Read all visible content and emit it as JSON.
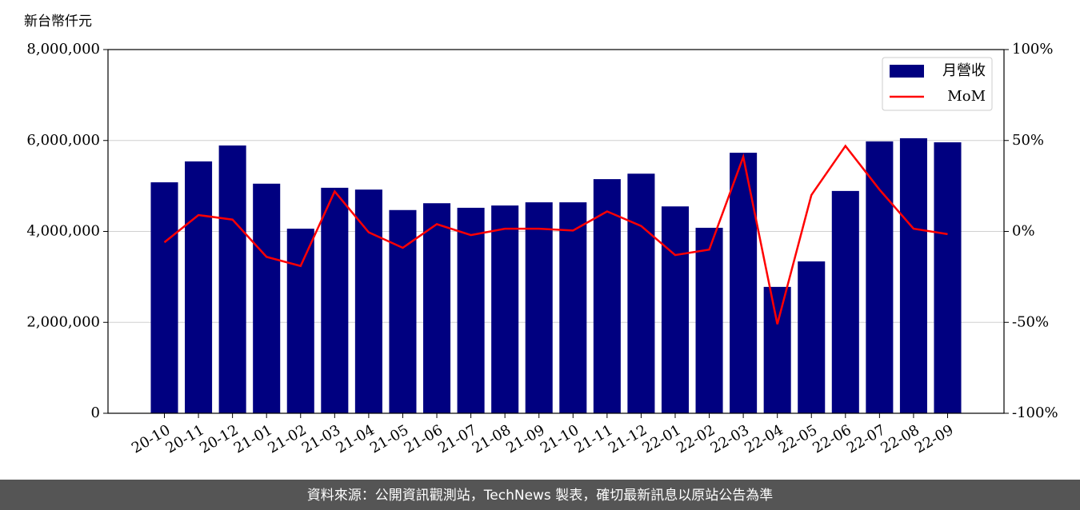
{
  "chart_data": {
    "type": "bar",
    "y_label": "新台幣仟元",
    "source": "資料來源：公開資訊觀測站，TechNews 製表，確切最新訊息以原站公告為準",
    "categories": [
      "20-10",
      "20-11",
      "20-12",
      "21-01",
      "21-02",
      "21-03",
      "21-04",
      "21-05",
      "21-06",
      "21-07",
      "21-08",
      "21-09",
      "21-10",
      "21-11",
      "21-12",
      "22-01",
      "22-02",
      "22-03",
      "22-04",
      "22-05",
      "22-06",
      "22-07",
      "22-08",
      "22-09"
    ],
    "series": [
      {
        "name": "月營收",
        "type": "bar",
        "color": "#000080",
        "values": [
          5080000,
          5540000,
          5890000,
          5050000,
          4060000,
          4960000,
          4920000,
          4470000,
          4620000,
          4520000,
          4570000,
          4640000,
          4640000,
          5150000,
          5270000,
          4550000,
          4080000,
          5730000,
          2780000,
          3340000,
          4890000,
          5980000,
          6050000,
          5960000
        ]
      },
      {
        "name": "MoM",
        "type": "line",
        "axis": "y2",
        "color": "#ff0000",
        "values": [
          -6,
          9,
          6.5,
          -14,
          -19,
          22,
          -0.5,
          -9,
          4,
          -2,
          1.5,
          1.5,
          0.5,
          11,
          3,
          -13,
          -10,
          41,
          -51,
          20,
          47,
          23,
          1.5,
          -1.5
        ]
      }
    ],
    "ylim": [
      0,
      8000000
    ],
    "yticks": [
      {
        "value": 0,
        "label": "0"
      },
      {
        "value": 2000000,
        "label": "2,000,000"
      },
      {
        "value": 4000000,
        "label": "4,000,000"
      },
      {
        "value": 6000000,
        "label": "6,000,000"
      },
      {
        "value": 8000000,
        "label": "8,000,000"
      }
    ],
    "y2lim": [
      -100,
      100
    ],
    "y2ticks": [
      {
        "value": -100,
        "label": "-100%"
      },
      {
        "value": -50,
        "label": "-50%"
      },
      {
        "value": 0,
        "label": "0%"
      },
      {
        "value": 50,
        "label": "50%"
      },
      {
        "value": 100,
        "label": "100%"
      }
    ],
    "grid": true,
    "legend": "upper right"
  }
}
